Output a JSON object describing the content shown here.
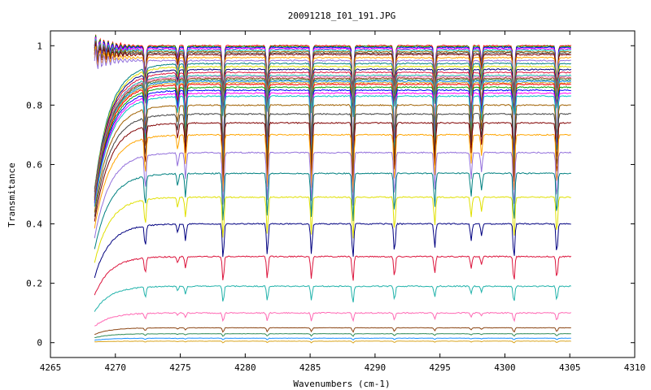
{
  "chart_data": {
    "type": "line",
    "title": "20091218_I01_191.JPG",
    "xlabel": "Wavenumbers (cm-1)",
    "ylabel": "Transmitance",
    "xlim": [
      4265,
      4310
    ],
    "ylim": [
      -0.05,
      1.05
    ],
    "x_ticks": [
      "4265",
      "4270",
      "4275",
      "4280",
      "4285",
      "4290",
      "4295",
      "4300",
      "4305",
      "4310"
    ],
    "y_ticks": [
      "0",
      "0.2",
      "0.4",
      "0.6",
      "0.8",
      "1"
    ],
    "grid": false,
    "legend": "none",
    "x_range_data": [
      4268.4,
      4305.1
    ],
    "baseline_levels": [
      1.0,
      0.997,
      0.994,
      0.99,
      0.985,
      0.98,
      0.975,
      0.97,
      0.96,
      0.95,
      0.94,
      0.93,
      0.92,
      0.91,
      0.9,
      0.895,
      0.89,
      0.885,
      0.88,
      0.875,
      0.87,
      0.86,
      0.85,
      0.84,
      0.83,
      0.8,
      0.77,
      0.74,
      0.7,
      0.64,
      0.57,
      0.49,
      0.4,
      0.29,
      0.19,
      0.1,
      0.05,
      0.03,
      0.015,
      0.005
    ],
    "absorption_lines": [
      {
        "x": 4272.3,
        "relative_depth": 0.18
      },
      {
        "x": 4274.8,
        "relative_depth": 0.07
      },
      {
        "x": 4275.4,
        "relative_depth": 0.14
      },
      {
        "x": 4278.3,
        "relative_depth": 0.3
      },
      {
        "x": 4281.7,
        "relative_depth": 0.26
      },
      {
        "x": 4285.1,
        "relative_depth": 0.26
      },
      {
        "x": 4288.3,
        "relative_depth": 0.3
      },
      {
        "x": 4291.5,
        "relative_depth": 0.24
      },
      {
        "x": 4294.6,
        "relative_depth": 0.2
      },
      {
        "x": 4297.4,
        "relative_depth": 0.14
      },
      {
        "x": 4298.2,
        "relative_depth": 0.1
      },
      {
        "x": 4300.7,
        "relative_depth": 0.3
      },
      {
        "x": 4304.0,
        "relative_depth": 0.26
      }
    ],
    "series_colors": [
      "#ff0000",
      "#00a000",
      "#0000ff",
      "#ff00ff",
      "#00c0c0",
      "#a06000",
      "#404040",
      "#800000",
      "#ffa500",
      "#9370db",
      "#008080",
      "#e0e000",
      "#000080",
      "#dc143c",
      "#20b2aa",
      "#ff69b4",
      "#8b4513",
      "#2e8b57",
      "#1e90ff",
      "#daa520"
    ]
  }
}
